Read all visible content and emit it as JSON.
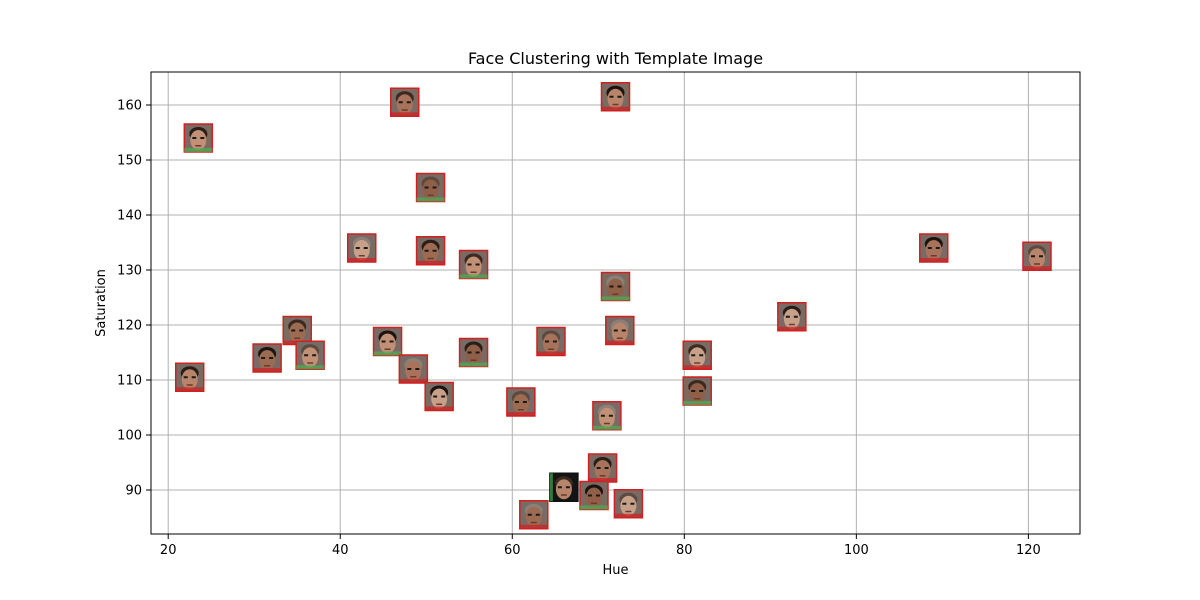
{
  "chart_data": {
    "type": "scatter",
    "title": "Face Clustering with Template Image",
    "xlabel": "Hue",
    "ylabel": "Saturation",
    "xlim": [
      18,
      126
    ],
    "ylim": [
      82,
      166
    ],
    "xticks": [
      20,
      40,
      60,
      80,
      100,
      120
    ],
    "yticks": [
      90,
      100,
      110,
      120,
      130,
      140,
      150,
      160
    ],
    "grid": true,
    "marker": "face-thumbnail",
    "points": [
      {
        "x": 23.5,
        "y": 154.0,
        "kind": "face",
        "border": "#d22020"
      },
      {
        "x": 47.5,
        "y": 160.5,
        "kind": "face",
        "border": "#d22020"
      },
      {
        "x": 72.0,
        "y": 161.5,
        "kind": "face",
        "border": "#d22020"
      },
      {
        "x": 50.5,
        "y": 145.0,
        "kind": "face",
        "border": "#d22020"
      },
      {
        "x": 42.5,
        "y": 134.0,
        "kind": "face",
        "border": "#d22020"
      },
      {
        "x": 50.5,
        "y": 133.5,
        "kind": "face",
        "border": "#d22020"
      },
      {
        "x": 55.5,
        "y": 131.0,
        "kind": "face",
        "border": "#d22020"
      },
      {
        "x": 109.0,
        "y": 134.0,
        "kind": "face",
        "border": "#d22020"
      },
      {
        "x": 121.0,
        "y": 132.5,
        "kind": "face",
        "border": "#d22020"
      },
      {
        "x": 72.0,
        "y": 127.0,
        "kind": "face",
        "border": "#d22020"
      },
      {
        "x": 92.5,
        "y": 121.5,
        "kind": "face",
        "border": "#d22020"
      },
      {
        "x": 35.0,
        "y": 119.0,
        "kind": "face",
        "border": "#d22020"
      },
      {
        "x": 45.5,
        "y": 117.0,
        "kind": "face",
        "border": "#d22020"
      },
      {
        "x": 64.5,
        "y": 117.0,
        "kind": "face",
        "border": "#d22020"
      },
      {
        "x": 72.5,
        "y": 119.0,
        "kind": "face",
        "border": "#d22020"
      },
      {
        "x": 55.5,
        "y": 115.0,
        "kind": "face",
        "border": "#d22020"
      },
      {
        "x": 81.5,
        "y": 114.5,
        "kind": "face",
        "border": "#d22020"
      },
      {
        "x": 31.5,
        "y": 114.0,
        "kind": "face",
        "border": "#d22020"
      },
      {
        "x": 36.5,
        "y": 114.5,
        "kind": "face",
        "border": "#d22020"
      },
      {
        "x": 48.5,
        "y": 112.0,
        "kind": "face",
        "border": "#d22020"
      },
      {
        "x": 22.5,
        "y": 110.5,
        "kind": "face",
        "border": "#d22020"
      },
      {
        "x": 81.5,
        "y": 108.0,
        "kind": "face",
        "border": "#d22020"
      },
      {
        "x": 51.5,
        "y": 107.0,
        "kind": "face",
        "border": "#d22020"
      },
      {
        "x": 61.0,
        "y": 106.0,
        "kind": "face",
        "border": "#d22020"
      },
      {
        "x": 71.0,
        "y": 103.5,
        "kind": "face",
        "border": "#d22020"
      },
      {
        "x": 70.5,
        "y": 94.0,
        "kind": "face",
        "border": "#d22020"
      },
      {
        "x": 66.0,
        "y": 90.5,
        "kind": "template",
        "border": "#111111"
      },
      {
        "x": 69.5,
        "y": 89.0,
        "kind": "face",
        "border": "#d22020"
      },
      {
        "x": 73.5,
        "y": 87.5,
        "kind": "face",
        "border": "#d22020"
      },
      {
        "x": 62.5,
        "y": 85.5,
        "kind": "face",
        "border": "#d22020"
      }
    ]
  },
  "colors": {
    "grid": "#b0b0b0",
    "face_border": "#d22020",
    "template_border": "#111111",
    "face_skin": "#b88468",
    "hair": "#2a1e18"
  }
}
